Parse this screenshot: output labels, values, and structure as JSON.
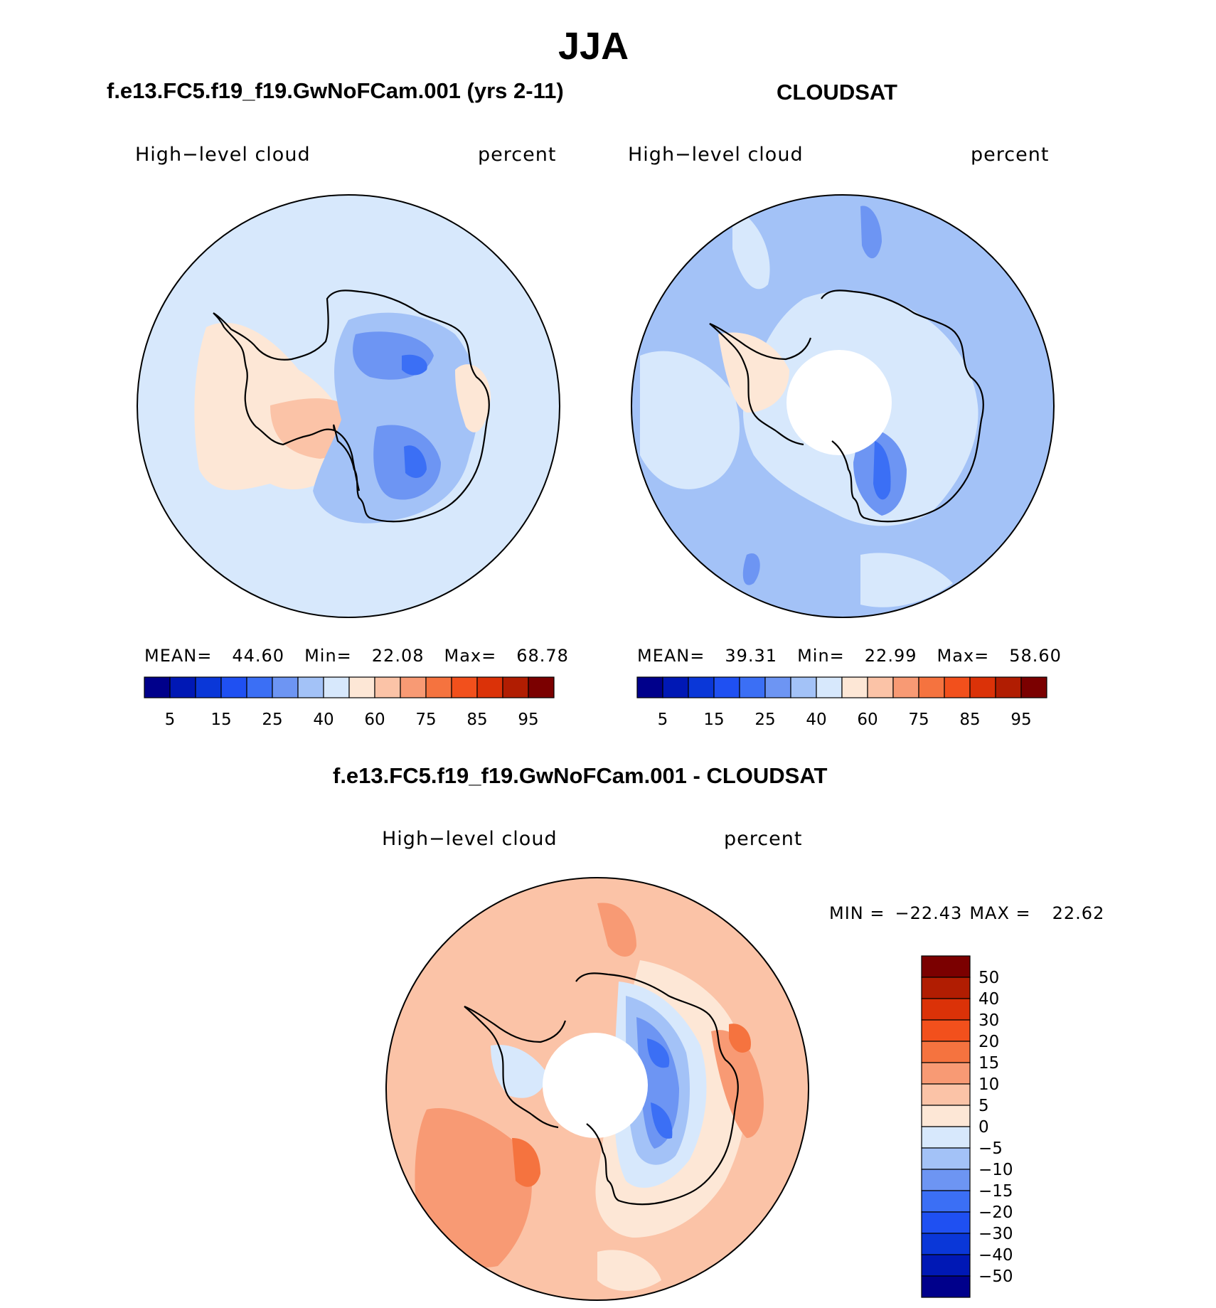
{
  "figure": {
    "season": "JJA"
  },
  "panels": [
    {
      "id": "model",
      "title": "f.e13.FC5.f19_f19.GwNoFCam.001 (yrs 2-11)",
      "left_label": "High−level  cloud",
      "right_label": "percent",
      "stats": {
        "mean_label": "MEAN=",
        "mean": "44.60",
        "min_label": "Min=",
        "min": "22.08",
        "max_label": "Max=",
        "max": "68.78"
      }
    },
    {
      "id": "obs",
      "title": "CLOUDSAT",
      "left_label": "High−level  cloud",
      "right_label": "percent",
      "stats": {
        "mean_label": "MEAN=",
        "mean": "39.31",
        "min_label": "Min=",
        "min": "22.99",
        "max_label": "Max=",
        "max": "58.60"
      }
    },
    {
      "id": "diff",
      "title": "f.e13.FC5.f19_f19.GwNoFCam.001 - CLOUDSAT",
      "left_label": "High−level  cloud",
      "right_label": "percent",
      "stats": {
        "min_label": "MIN  =",
        "min": "−22.43",
        "max_label": "MAX  =",
        "max": "22.62"
      }
    }
  ],
  "chart_data": [
    {
      "type": "heatmap",
      "projection": "south polar stereographic",
      "title": "f.e13.FC5.f19_f19.GwNoFCam.001 (yrs 2-11)",
      "variable": "High-level cloud",
      "units": "percent",
      "colorbar": {
        "orientation": "horizontal",
        "levels": [
          5,
          10,
          15,
          20,
          25,
          30,
          40,
          50,
          60,
          70,
          75,
          80,
          85,
          90,
          95
        ],
        "tick_labels": [
          "5",
          "15",
          "25",
          "40",
          "60",
          "75",
          "85",
          "95"
        ],
        "colors": [
          "#00008b",
          "#0018b5",
          "#0a37d8",
          "#1f50f2",
          "#3b6ff5",
          "#6d95f3",
          "#a3c2f7",
          "#d7e8fc",
          "#fde7d6",
          "#fbc3a7",
          "#f89a74",
          "#f5733f",
          "#f2501c",
          "#db3208",
          "#b11d02",
          "#7b0000"
        ]
      },
      "regions": [
        {
          "id": "background",
          "bin": "40-50"
        },
        {
          "id": "wais-east",
          "bin": "30-40"
        },
        {
          "id": "core-a",
          "bin": "25-30"
        },
        {
          "id": "core-b",
          "bin": "25-30"
        },
        {
          "id": "peninsula-sector",
          "bin": "50-60"
        },
        {
          "id": "inner-peninsula",
          "bin": "60-70"
        }
      ]
    },
    {
      "type": "heatmap",
      "projection": "south polar stereographic",
      "title": "CLOUDSAT",
      "variable": "High-level cloud",
      "units": "percent",
      "colorbar": {
        "orientation": "horizontal",
        "levels": [
          5,
          10,
          15,
          20,
          25,
          30,
          40,
          50,
          60,
          70,
          75,
          80,
          85,
          90,
          95
        ],
        "tick_labels": [
          "5",
          "15",
          "25",
          "40",
          "60",
          "75",
          "85",
          "95"
        ],
        "colors": [
          "#00008b",
          "#0018b5",
          "#0a37d8",
          "#1f50f2",
          "#3b6ff5",
          "#6d95f3",
          "#a3c2f7",
          "#d7e8fc",
          "#fde7d6",
          "#fbc3a7",
          "#f89a74",
          "#f5733f",
          "#f2501c",
          "#db3208",
          "#b11d02",
          "#7b0000"
        ]
      },
      "regions": [
        {
          "id": "background",
          "bin": "30-40"
        },
        {
          "id": "continent",
          "bin": "40-50"
        },
        {
          "id": "ross-core",
          "bin": "25-30"
        },
        {
          "id": "peninsula-patch",
          "bin": "50-60"
        },
        {
          "id": "pole-hole",
          "bin": "missing"
        }
      ]
    },
    {
      "type": "heatmap",
      "projection": "south polar stereographic",
      "title": "f.e13.FC5.f19_f19.GwNoFCam.001 - CLOUDSAT",
      "variable": "High-level cloud",
      "units": "percent",
      "colorbar": {
        "orientation": "vertical",
        "levels": [
          -50,
          -40,
          -30,
          -20,
          -15,
          -10,
          -5,
          0,
          5,
          10,
          15,
          20,
          30,
          40,
          50
        ],
        "tick_labels": [
          "50",
          "40",
          "30",
          "20",
          "15",
          "10",
          "5",
          "0",
          "−5",
          "−10",
          "−15",
          "−20",
          "−30",
          "−40",
          "−50"
        ],
        "colors": [
          "#7b0000",
          "#b11d02",
          "#db3208",
          "#f2501c",
          "#f5733f",
          "#f89a74",
          "#fbc3a7",
          "#fde7d6",
          "#d7e8fc",
          "#a3c2f7",
          "#6d95f3",
          "#3b6ff5",
          "#1f50f2",
          "#0a37d8",
          "#0018b5",
          "#00008b"
        ]
      },
      "regions": [
        {
          "id": "background",
          "bin": "5-10"
        },
        {
          "id": "east-negative",
          "bin": "-15 to -10"
        },
        {
          "id": "east-core",
          "bin": "-20 to -15"
        },
        {
          "id": "weddell-positive",
          "bin": "10-15"
        },
        {
          "id": "ross-positive",
          "bin": "15-20"
        },
        {
          "id": "pole-hole",
          "bin": "missing"
        }
      ]
    }
  ],
  "palette": {
    "c_5_10": "#fbc3a7",
    "c_0_5": "#fde7d6",
    "c_m5_0": "#d7e8fc",
    "c_m10_m5": "#a3c2f7",
    "c_m15_m10": "#6d95f3",
    "c_m20_m15": "#3b6ff5",
    "c_10_15": "#f89a74",
    "c_15_20": "#f5733f"
  }
}
